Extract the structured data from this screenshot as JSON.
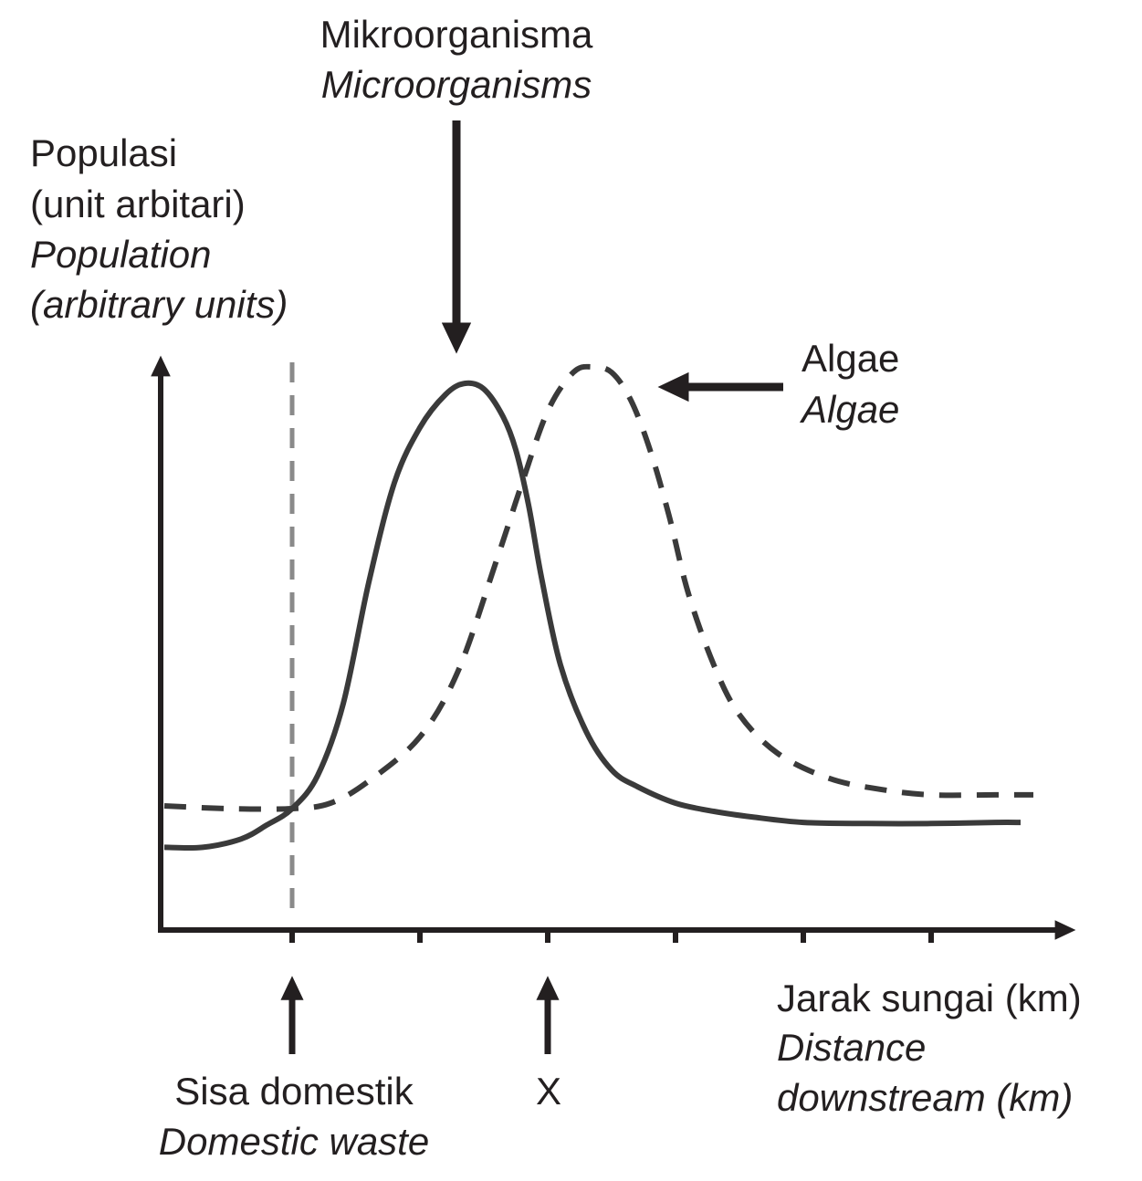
{
  "chart_data": {
    "type": "line",
    "ylabel": {
      "malay_1": "Populasi",
      "malay_2": "(unit arbitari)",
      "english_1": "Population",
      "english_2": "(arbitrary units)"
    },
    "xlabel": {
      "malay": "Jarak sungai (km)",
      "english_1": "Distance",
      "english_2": "downstream (km)"
    },
    "x_ticks": 6,
    "ylim": [
      0,
      100
    ],
    "series": [
      {
        "name": "Mikroorganisma",
        "label_malay": "Mikroorganisma",
        "label_english": "Microorganisms",
        "style": "solid",
        "color": "#3a3a3a",
        "x": [
          -1.0,
          -0.7,
          -0.4,
          -0.2,
          0.0,
          0.2,
          0.4,
          0.6,
          0.8,
          1.0,
          1.2,
          1.35,
          1.5,
          1.65,
          1.75,
          1.85,
          1.95,
          2.1,
          2.3,
          2.5,
          2.7,
          3.0,
          3.3,
          3.6,
          4.0,
          4.5,
          5.0,
          5.5,
          5.7
        ],
        "y": [
          13,
          13,
          14.5,
          17,
          20,
          26,
          39,
          61,
          79,
          89,
          95,
          97,
          96,
          91,
          85,
          75,
          62,
          46,
          34,
          27,
          24,
          21,
          19.5,
          18.5,
          17.5,
          17.3,
          17.3,
          17.5,
          17.5
        ]
      },
      {
        "name": "Algae",
        "label_malay": "Algae",
        "label_english": "Algae",
        "style": "dashed",
        "color": "#3a3a3a",
        "x": [
          -1.0,
          -0.5,
          0.0,
          0.3,
          0.6,
          1.0,
          1.3,
          1.6,
          1.8,
          2.0,
          2.2,
          2.35,
          2.5,
          2.65,
          2.8,
          2.95,
          3.1,
          3.3,
          3.5,
          3.8,
          4.2,
          4.6,
          5.0,
          5.5,
          5.8
        ],
        "y": [
          20.5,
          20,
          20,
          21,
          25,
          33,
          45,
          65,
          79,
          92,
          99,
          100,
          99,
          94,
          85,
          73,
          59,
          46,
          37,
          30,
          25.5,
          23.5,
          22.5,
          22.5,
          22.5
        ]
      }
    ],
    "markers": [
      {
        "x": 0,
        "label_malay": "Sisa domestik",
        "label_english": "Domestic waste"
      },
      {
        "x": 2,
        "label": "X"
      }
    ]
  }
}
